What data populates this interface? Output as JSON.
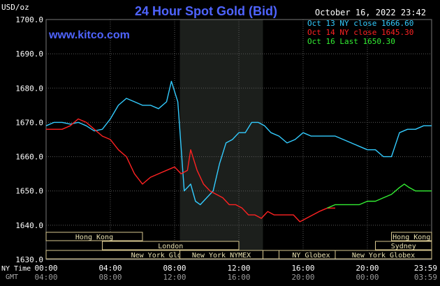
{
  "header": {
    "unit": "USD/oz",
    "title": "24 Hour Spot Gold (Bid)",
    "timestamp": "October 16, 2022 23:42",
    "site": "www.kitco.com"
  },
  "legend": [
    {
      "text": "Oct 13 NY close 1666.60",
      "color": "#33ccff"
    },
    {
      "text": "Oct 14 NY close 1645.30",
      "color": "#ff2222"
    },
    {
      "text": "Oct 16 Last 1650.30",
      "color": "#33ee33"
    }
  ],
  "axis": {
    "row1_label": "NY Time",
    "row2_label": "GMT",
    "ny_ticks": [
      "00:00",
      "04:00",
      "08:00",
      "12:00",
      "16:00",
      "20:00",
      "23:59"
    ],
    "gmt_ticks": [
      "04:00",
      "08:00",
      "12:00",
      "16:00",
      "20:00",
      "00:00",
      "03:59"
    ]
  },
  "sessions": [
    {
      "label": "Hong Kong",
      "start": 0,
      "end": 6
    },
    {
      "label": "London",
      "start": 3.5,
      "end": 12
    },
    {
      "label": "New York Globex",
      "start": 0,
      "end": 14.5
    },
    {
      "label": "New York NYMEX",
      "start": 8.33,
      "end": 13.5
    },
    {
      "label": "NY Globex",
      "start": 14.5,
      "end": 18.5
    },
    {
      "label": "Hong Kong",
      "start": 21.5,
      "end": 24
    },
    {
      "label": "Sydney",
      "start": 20.5,
      "end": 24
    },
    {
      "label": "New York Globex",
      "start": 18,
      "end": 24
    }
  ],
  "chart_data": {
    "type": "line",
    "title": "24 Hour Spot Gold (Bid)",
    "ylabel": "USD/oz",
    "xlabel": "NY Time",
    "ylim": [
      1630,
      1700
    ],
    "xlim": [
      0,
      24
    ],
    "yticks": [
      "1630.0",
      "1640.0",
      "1650.0",
      "1660.0",
      "1670.0",
      "1680.0",
      "1690.0",
      "1700.0"
    ],
    "nymex_shade": [
      8.33,
      13.5
    ],
    "grid": true,
    "legend_position": "top-right",
    "series": [
      {
        "name": "Oct 13 NY close 1666.60",
        "color": "#33ccff",
        "x": [
          0,
          0.5,
          1,
          1.5,
          2,
          2.5,
          3,
          3.5,
          4,
          4.5,
          5,
          5.5,
          6,
          6.5,
          7,
          7.5,
          7.8,
          8.2,
          8.6,
          9,
          9.3,
          9.6,
          10,
          10.4,
          10.8,
          11.2,
          11.6,
          12,
          12.4,
          12.8,
          13.2,
          13.6,
          14,
          14.5,
          15,
          15.5,
          16,
          16.5,
          17,
          17.5,
          18,
          18.5,
          19,
          19.5,
          20,
          20.5,
          21,
          21.5,
          22,
          22.5,
          23,
          23.5,
          24
        ],
        "y": [
          1669,
          1670,
          1670,
          1669.5,
          1670,
          1669,
          1667.5,
          1668,
          1671,
          1675,
          1677,
          1676,
          1675,
          1675,
          1674,
          1676,
          1682,
          1676,
          1650,
          1652,
          1647,
          1646,
          1648,
          1650,
          1658,
          1664,
          1665,
          1667,
          1667,
          1670,
          1670,
          1669,
          1667,
          1666,
          1664,
          1665,
          1667,
          1666,
          1666,
          1666,
          1666,
          1665,
          1664,
          1663,
          1662,
          1662,
          1660,
          1660,
          1667,
          1668,
          1668,
          1669,
          1669
        ]
      },
      {
        "name": "Oct 14 NY close 1645.30",
        "color": "#ff2222",
        "x": [
          0,
          0.5,
          1,
          1.5,
          2,
          2.5,
          3,
          3.5,
          4,
          4.5,
          5,
          5.5,
          6,
          6.5,
          7,
          7.5,
          8,
          8.4,
          8.8,
          9,
          9.4,
          9.8,
          10.2,
          10.6,
          11,
          11.4,
          11.8,
          12.2,
          12.6,
          13,
          13.4,
          13.8,
          14.2,
          14.6,
          15,
          15.4,
          15.8,
          16.2,
          16.6,
          17,
          17.5,
          18
        ],
        "y": [
          1668,
          1668,
          1668,
          1669,
          1671,
          1670,
          1668,
          1666,
          1665,
          1662,
          1660,
          1655,
          1652,
          1654,
          1655,
          1656,
          1657,
          1655,
          1656,
          1662,
          1656,
          1652,
          1650,
          1649,
          1648,
          1646,
          1646,
          1645,
          1643,
          1643,
          1642,
          1644,
          1643,
          1643,
          1643,
          1643,
          1641,
          1642,
          1643,
          1644,
          1645,
          1645
        ]
      },
      {
        "name": "Oct 16 Last 1650.30",
        "color": "#33ee33",
        "x": [
          17.5,
          18,
          18.5,
          19,
          19.5,
          20,
          20.5,
          21,
          21.5,
          22,
          22.3,
          22.6,
          23,
          23.5,
          24
        ],
        "y": [
          1645,
          1646,
          1646,
          1646,
          1646,
          1647,
          1647,
          1648,
          1649,
          1651,
          1652,
          1651,
          1650,
          1650,
          1650
        ]
      }
    ]
  }
}
